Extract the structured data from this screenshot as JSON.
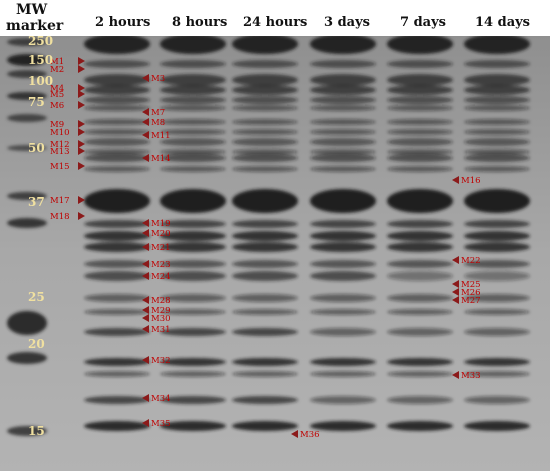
{
  "header": {
    "mw_marker_line1": "MW",
    "mw_marker_line2": "marker",
    "lanes": [
      "2 hours",
      "8 hours",
      "24 hours",
      "3 days",
      "7 days",
      "14 days"
    ]
  },
  "mw_values": [
    "250",
    "150",
    "100",
    "75",
    "50",
    "37",
    "25",
    "20",
    "15"
  ],
  "markers_lane1": [
    "M1",
    "M2",
    "M4",
    "M5",
    "M6",
    "M9",
    "M10",
    "M12",
    "M13",
    "M15",
    "M17",
    "M18"
  ],
  "markers_lane2": [
    "M3",
    "M7",
    "M8",
    "M11",
    "M14",
    "M19",
    "M20",
    "M21",
    "M23",
    "M24",
    "M28",
    "M29",
    "M30",
    "M31",
    "M32",
    "M34",
    "M35"
  ],
  "marker_lane3": [
    "M36"
  ],
  "markers_lane5": [
    "M16",
    "M22",
    "M25",
    "M26",
    "M27",
    "M33"
  ],
  "colors": {
    "gel": "#9e9e9e",
    "band": "#2a2a2a",
    "label": "#c00000"
  }
}
